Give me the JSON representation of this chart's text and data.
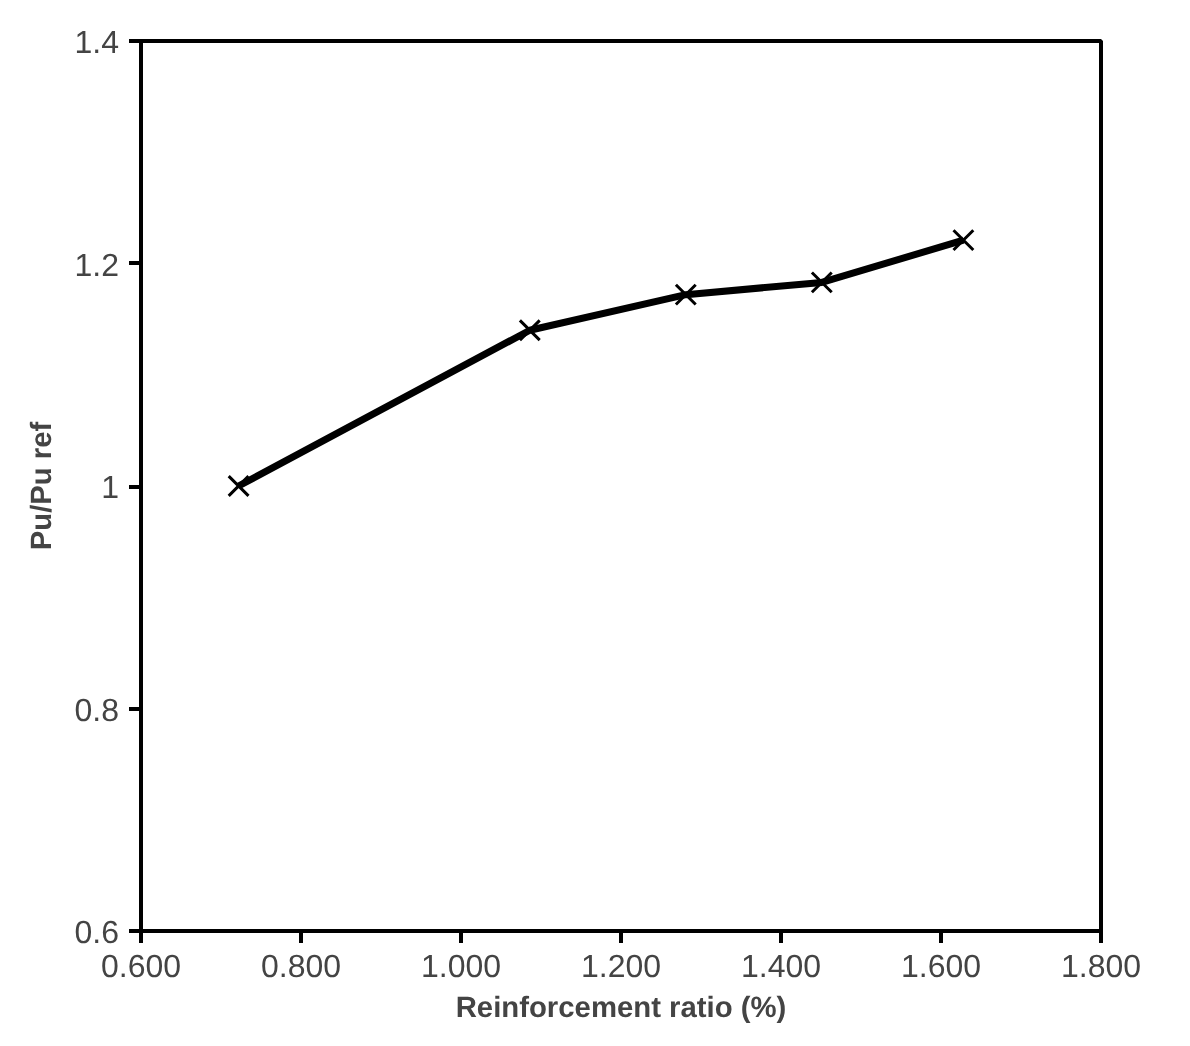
{
  "chart_data": {
    "type": "line",
    "xlabel": "Reinforcement ratio (%)",
    "ylabel": "Pu/Pu ref",
    "x": [
      0.722,
      1.086,
      1.281,
      1.451,
      1.628
    ],
    "series": [
      {
        "color": "#000000",
        "values": [
          1.0,
          1.14,
          1.172,
          1.183,
          1.221
        ]
      }
    ],
    "xlim": [
      0.6,
      1.8
    ],
    "xticks": [
      {
        "value": 0.6,
        "label": "0.600"
      },
      {
        "value": 0.8,
        "label": "0.800"
      },
      {
        "value": 1.0,
        "label": "1.000"
      },
      {
        "value": 1.2,
        "label": "1.200"
      },
      {
        "value": 1.4,
        "label": "1.400"
      },
      {
        "value": 1.6,
        "label": "1.600"
      },
      {
        "value": 1.8,
        "label": "1.800"
      }
    ],
    "ylim": [
      0.6,
      1.4
    ],
    "yticks": [
      0.6,
      0.8,
      1,
      1.2,
      1.4
    ],
    "grid": false,
    "marker": "cross",
    "line_style": "solid"
  }
}
